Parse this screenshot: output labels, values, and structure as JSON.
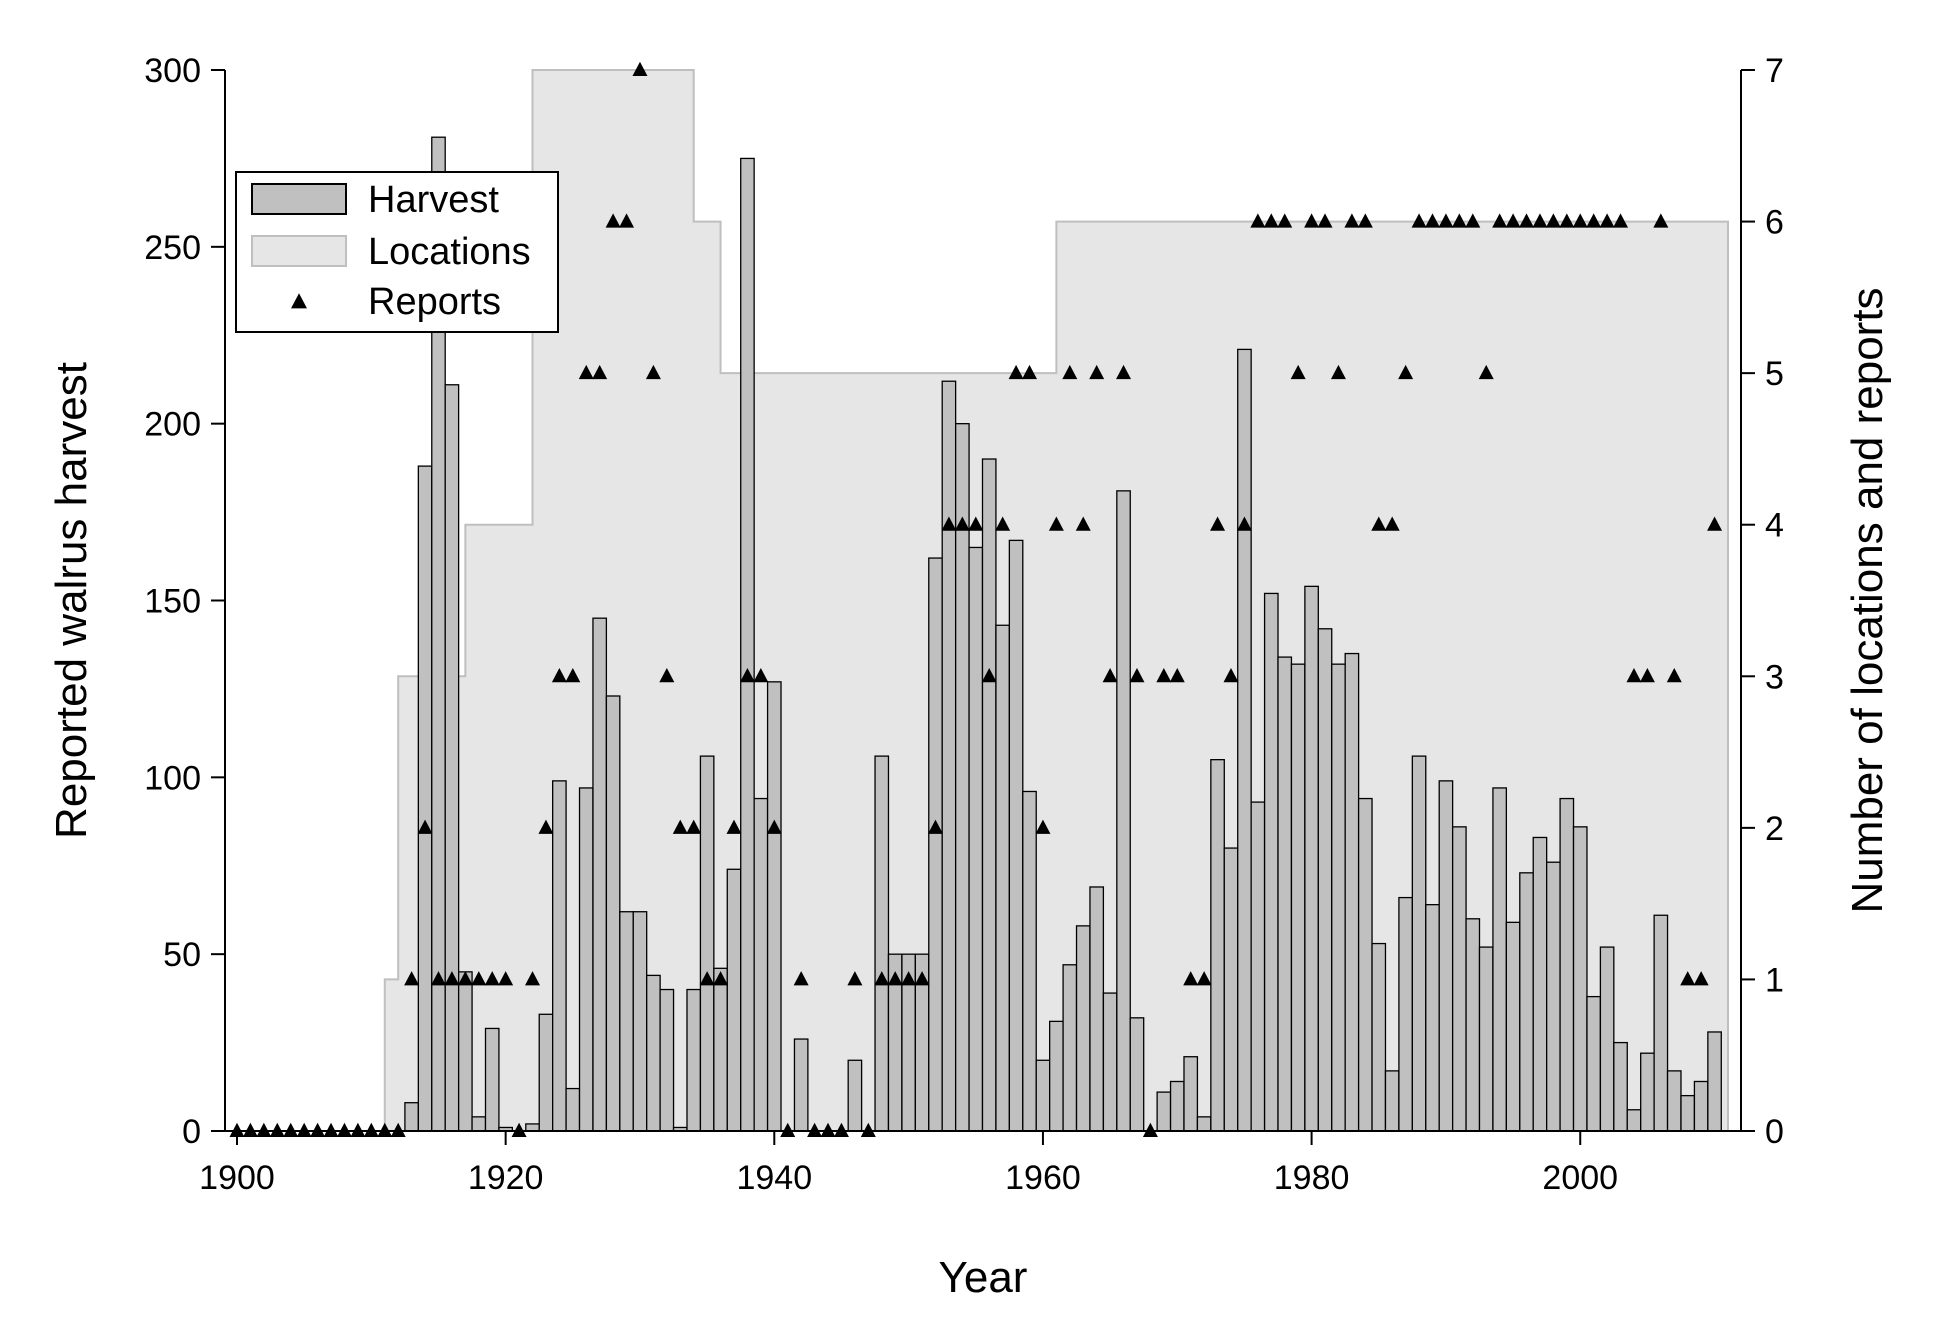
{
  "chart_data": {
    "type": "bar",
    "xlabel": "Year",
    "ylabel_left": "Reported walrus harvest",
    "ylabel_right": "Number of locations and reports",
    "xlim": [
      1900,
      2011
    ],
    "ylim_left": [
      0,
      300
    ],
    "ylim_right": [
      0,
      7
    ],
    "x_ticks": [
      1900,
      1920,
      1940,
      1960,
      1980,
      2000
    ],
    "y_left_ticks": [
      0,
      50,
      100,
      150,
      200,
      250,
      300
    ],
    "y_right_ticks": [
      0,
      1,
      2,
      3,
      4,
      5,
      6,
      7
    ],
    "grid": false,
    "legend_position": "top-left",
    "legend": [
      {
        "name": "Harvest",
        "symbol": "bar"
      },
      {
        "name": "Locations",
        "symbol": "area"
      },
      {
        "name": "Reports",
        "symbol": "triangle"
      }
    ],
    "colors": {
      "harvest_fill": "#c0c0c0",
      "harvest_stroke": "#000000",
      "locations_fill": "#e6e6e6",
      "locations_stroke": "#bfbfbf",
      "reports": "#000000"
    },
    "series": [
      {
        "name": "Harvest",
        "axis": "left",
        "type": "bar",
        "x": [
          1900,
          1901,
          1902,
          1903,
          1904,
          1905,
          1906,
          1907,
          1908,
          1909,
          1910,
          1911,
          1912,
          1913,
          1914,
          1915,
          1916,
          1917,
          1918,
          1919,
          1920,
          1921,
          1922,
          1923,
          1924,
          1925,
          1926,
          1927,
          1928,
          1929,
          1930,
          1931,
          1932,
          1933,
          1934,
          1935,
          1936,
          1937,
          1938,
          1939,
          1940,
          1941,
          1942,
          1943,
          1944,
          1945,
          1946,
          1947,
          1948,
          1949,
          1950,
          1951,
          1952,
          1953,
          1954,
          1955,
          1956,
          1957,
          1958,
          1959,
          1960,
          1961,
          1962,
          1963,
          1964,
          1965,
          1966,
          1967,
          1968,
          1969,
          1970,
          1971,
          1972,
          1973,
          1974,
          1975,
          1976,
          1977,
          1978,
          1979,
          1980,
          1981,
          1982,
          1983,
          1984,
          1985,
          1986,
          1987,
          1988,
          1989,
          1990,
          1991,
          1992,
          1993,
          1994,
          1995,
          1996,
          1997,
          1998,
          1999,
          2000,
          2001,
          2002,
          2003,
          2004,
          2005,
          2006,
          2007,
          2008,
          2009,
          2010
        ],
        "values": [
          0,
          0,
          0,
          0,
          0,
          0,
          0,
          0,
          0,
          0,
          0,
          0,
          0,
          8,
          188,
          281,
          211,
          45,
          4,
          29,
          1,
          0,
          2,
          33,
          99,
          12,
          97,
          145,
          123,
          62,
          62,
          44,
          40,
          1,
          40,
          106,
          46,
          74,
          275,
          94,
          127,
          0,
          26,
          0,
          0,
          0,
          20,
          0,
          106,
          50,
          50,
          50,
          162,
          212,
          200,
          165,
          190,
          143,
          167,
          96,
          20,
          31,
          47,
          58,
          69,
          39,
          181,
          32,
          0,
          11,
          14,
          21,
          4,
          105,
          80,
          221,
          93,
          152,
          134,
          132,
          154,
          142,
          132,
          135,
          94,
          53,
          17,
          66,
          106,
          64,
          99,
          86,
          60,
          52,
          97,
          59,
          73,
          83,
          76,
          94,
          86,
          38,
          52,
          25,
          6,
          22,
          61,
          17,
          10,
          14,
          28
        ]
      },
      {
        "name": "Locations",
        "axis": "right",
        "type": "step-area",
        "segments": [
          {
            "x": [
              1900,
              1911
            ],
            "value": 0
          },
          {
            "x": [
              1911,
              1912
            ],
            "value": 1
          },
          {
            "x": [
              1912,
              1917
            ],
            "value": 3
          },
          {
            "x": [
              1917,
              1922
            ],
            "value": 4
          },
          {
            "x": [
              1922,
              1934
            ],
            "value": 7
          },
          {
            "x": [
              1934,
              1936
            ],
            "value": 6
          },
          {
            "x": [
              1936,
              1961
            ],
            "value": 5
          },
          {
            "x": [
              1961,
              2011
            ],
            "value": 6
          }
        ]
      },
      {
        "name": "Reports",
        "axis": "right",
        "type": "scatter",
        "x": [
          1900,
          1901,
          1902,
          1903,
          1904,
          1905,
          1906,
          1907,
          1908,
          1909,
          1910,
          1911,
          1912,
          1913,
          1914,
          1915,
          1916,
          1917,
          1918,
          1919,
          1920,
          1921,
          1922,
          1923,
          1924,
          1925,
          1926,
          1927,
          1928,
          1929,
          1930,
          1931,
          1932,
          1933,
          1934,
          1935,
          1936,
          1937,
          1938,
          1939,
          1940,
          1941,
          1942,
          1943,
          1944,
          1945,
          1946,
          1947,
          1948,
          1949,
          1950,
          1951,
          1952,
          1953,
          1954,
          1955,
          1956,
          1957,
          1958,
          1959,
          1960,
          1961,
          1962,
          1963,
          1964,
          1965,
          1966,
          1967,
          1968,
          1969,
          1970,
          1971,
          1972,
          1973,
          1974,
          1975,
          1976,
          1977,
          1978,
          1979,
          1980,
          1981,
          1982,
          1983,
          1984,
          1985,
          1986,
          1987,
          1988,
          1989,
          1990,
          1991,
          1992,
          1993,
          1994,
          1995,
          1996,
          1997,
          1998,
          1999,
          2000,
          2001,
          2002,
          2003,
          2004,
          2005,
          2006,
          2007,
          2008,
          2009,
          2010
        ],
        "values": [
          0,
          0,
          0,
          0,
          0,
          0,
          0,
          0,
          0,
          0,
          0,
          0,
          0,
          1,
          2,
          1,
          1,
          1,
          1,
          1,
          1,
          0,
          1,
          2,
          3,
          3,
          5,
          5,
          6,
          6,
          7,
          5,
          3,
          2,
          2,
          1,
          1,
          2,
          3,
          3,
          2,
          0,
          1,
          0,
          0,
          0,
          1,
          0,
          1,
          1,
          1,
          1,
          2,
          4,
          4,
          4,
          3,
          4,
          5,
          5,
          2,
          4,
          5,
          4,
          5,
          3,
          5,
          3,
          0,
          3,
          3,
          1,
          1,
          4,
          3,
          4,
          6,
          6,
          6,
          5,
          6,
          6,
          5,
          6,
          6,
          4,
          4,
          5,
          6,
          6,
          6,
          6,
          6,
          5,
          6,
          6,
          6,
          6,
          6,
          6,
          6,
          6,
          6,
          6,
          3,
          3,
          6,
          3,
          1,
          1,
          4
        ]
      }
    ]
  }
}
